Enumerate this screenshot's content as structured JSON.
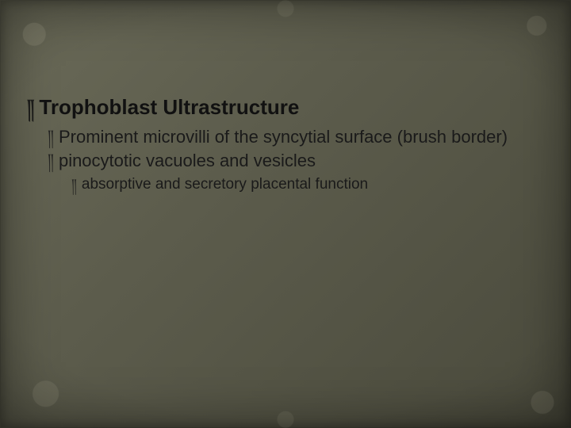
{
  "slide": {
    "background_base": "#5c5c4c",
    "vignette_color": "#000000",
    "text_color_heading": "#111111",
    "text_color_body": "#1a1a1a",
    "bullet_glyph": "༎",
    "heading": {
      "text": "Trophoblast Ultrastructure",
      "fontsize_pt": 26,
      "weight": "bold"
    },
    "sub_items": [
      {
        "text": "Prominent microvilli of the syncytial surface (brush border)",
        "fontsize_pt": 22
      },
      {
        "text": "pinocytotic vacuoles and vesicles",
        "fontsize_pt": 22,
        "children": [
          {
            "text": "absorptive and secretory placental function",
            "fontsize_pt": 19
          }
        ]
      }
    ]
  }
}
